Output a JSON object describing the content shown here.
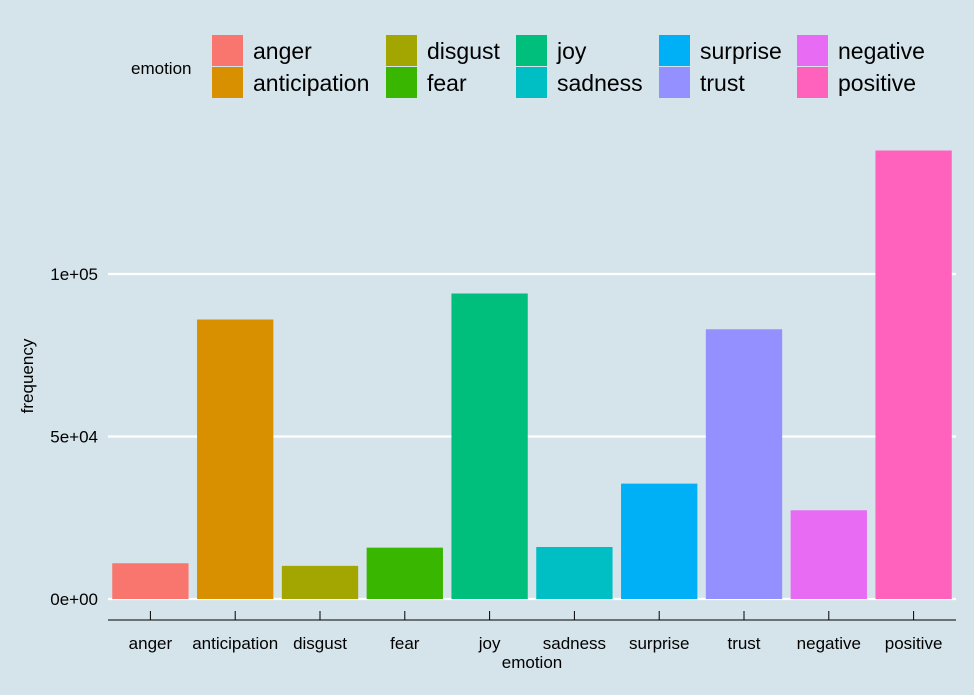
{
  "chart_data": {
    "type": "bar",
    "categories": [
      "anger",
      "anticipation",
      "disgust",
      "fear",
      "joy",
      "sadness",
      "surprise",
      "trust",
      "negative",
      "positive"
    ],
    "values": [
      11000,
      86000,
      10200,
      15800,
      94000,
      16000,
      35500,
      83000,
      27300,
      138000
    ],
    "colors": [
      "#F8766D",
      "#D89000",
      "#A3A500",
      "#39B600",
      "#00BF7D",
      "#00BFC4",
      "#00B0F6",
      "#9590FF",
      "#E76BF3",
      "#FF62BC"
    ],
    "xlabel": "emotion",
    "ylabel": "frequency",
    "ylim": [
      0,
      138000
    ],
    "yticks": [
      0,
      50000,
      100000
    ],
    "ytick_labels": [
      "0e+00",
      "5e+04",
      "1e+05"
    ],
    "grid": "horizontal major",
    "legend": {
      "title": "emotion",
      "position": "top",
      "entries": [
        "anger",
        "anticipation",
        "disgust",
        "fear",
        "joy",
        "sadness",
        "surprise",
        "trust",
        "negative",
        "positive"
      ]
    },
    "background": "#d5e4eb"
  }
}
